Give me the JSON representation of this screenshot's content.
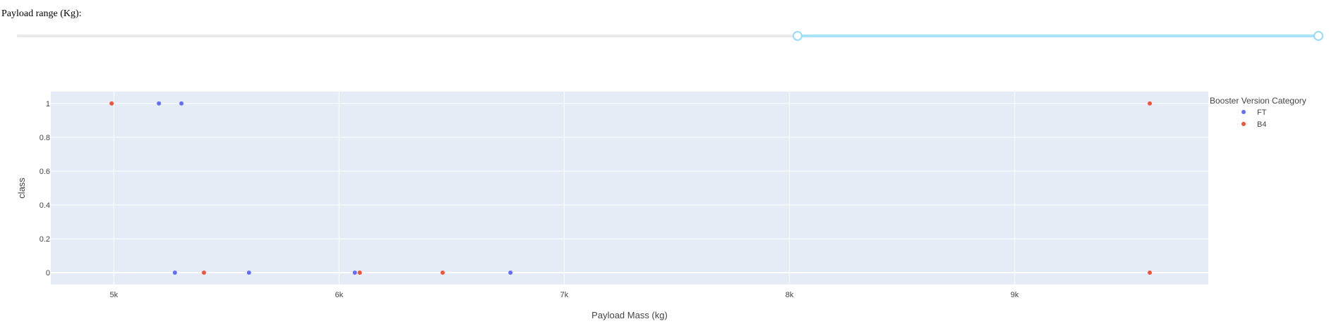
{
  "slider": {
    "label": "Payload range (Kg):",
    "min": 0,
    "max": 10000,
    "value": [
      6000,
      10000
    ],
    "track_color": "#abe2fb",
    "handle_color": "#96dbfa"
  },
  "chart_data": {
    "type": "scatter",
    "title": "",
    "xlabel": "Payload Mass (kg)",
    "ylabel": "class",
    "xlim": [
      4720,
      9860
    ],
    "ylim": [
      -0.07,
      1.07
    ],
    "xticks": [
      5000,
      6000,
      7000,
      8000,
      9000
    ],
    "xtick_labels": [
      "5k",
      "6k",
      "7k",
      "8k",
      "9k"
    ],
    "yticks": [
      0,
      0.2,
      0.4,
      0.6,
      0.8,
      1
    ],
    "ytick_labels": [
      "0",
      "0.2",
      "0.4",
      "0.6",
      "0.8",
      "1"
    ],
    "grid": true,
    "legend_title": "Booster Version Category",
    "legend_position": "right",
    "series": [
      {
        "name": "FT",
        "color": "#636efa",
        "points": [
          [
            5200,
            1
          ],
          [
            5300,
            1
          ],
          [
            5271,
            0
          ],
          [
            5600,
            0
          ],
          [
            6070,
            0
          ],
          [
            6761,
            0
          ]
        ]
      },
      {
        "name": "B4",
        "color": "#ef553b",
        "points": [
          [
            4990,
            1
          ],
          [
            5400,
            0
          ],
          [
            6092,
            0
          ],
          [
            6460,
            0
          ],
          [
            9600,
            1
          ],
          [
            9600,
            0
          ]
        ]
      }
    ]
  }
}
